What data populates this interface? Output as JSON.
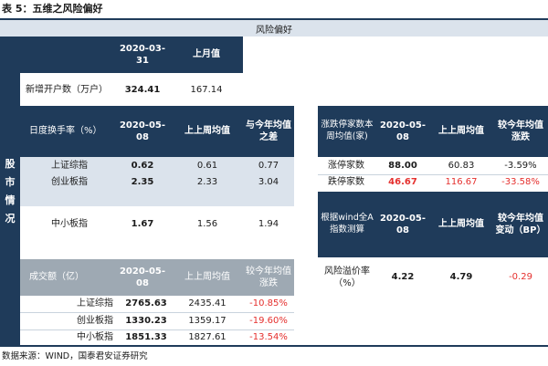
{
  "title": "表 5：五维之风险偏好",
  "header_band": "风险偏好",
  "side_label": [
    "股",
    "市",
    "情",
    "况"
  ],
  "footer": "数据来源：WIND，国泰君安证券研究",
  "colors": {
    "navy": "#1f3b5a",
    "grey": "#9ea9b3",
    "band": "#dbe3ec",
    "red": "#e5302e"
  },
  "new_accounts": {
    "header": [
      "2020-03-31",
      "上月值"
    ],
    "row_label": "新增开户数（万户）",
    "values": [
      "324.41",
      "167.14"
    ]
  },
  "turnover": {
    "header": [
      "日度换手率（%）",
      "2020-05-08",
      "上上周均值",
      "与今年均值之差"
    ],
    "rows": [
      {
        "label": "上证综指",
        "values": [
          "0.62",
          "0.61",
          "0.77"
        ]
      },
      {
        "label": "创业板指",
        "values": [
          "2.35",
          "2.33",
          "3.04"
        ]
      },
      {
        "label": "中小板指",
        "values": [
          "1.67",
          "1.56",
          "1.94"
        ]
      }
    ]
  },
  "volume": {
    "header": [
      "成交额（亿）",
      "2020-05-08",
      "上上周均值",
      "较今年均值涨跌"
    ],
    "rows": [
      {
        "label": "上证综指",
        "values": [
          "2765.63",
          "2435.41",
          "-10.85%"
        ]
      },
      {
        "label": "创业板指",
        "values": [
          "1330.23",
          "1359.17",
          "-19.60%"
        ]
      },
      {
        "label": "中小板指",
        "values": [
          "1851.33",
          "1827.61",
          "-13.54%"
        ]
      }
    ]
  },
  "limit": {
    "header": [
      "涨跌停家数本周均值(家)",
      "2020-05-08",
      "上上周均值",
      "较今年均值涨跌"
    ],
    "rows": [
      {
        "label": "涨停家数",
        "values": [
          "88.00",
          "60.83",
          "-3.59%"
        ]
      },
      {
        "label": "跌停家数",
        "values": [
          "46.67",
          "116.67",
          "-33.58%"
        ]
      }
    ]
  },
  "premium": {
    "header": [
      "根据wind全A指数测算",
      "2020-05-08",
      "上上周均值",
      "较今年均值变动（BP）"
    ],
    "row_label": "风险溢价率（%）",
    "values": [
      "4.22",
      "4.79",
      "-0.29"
    ]
  }
}
